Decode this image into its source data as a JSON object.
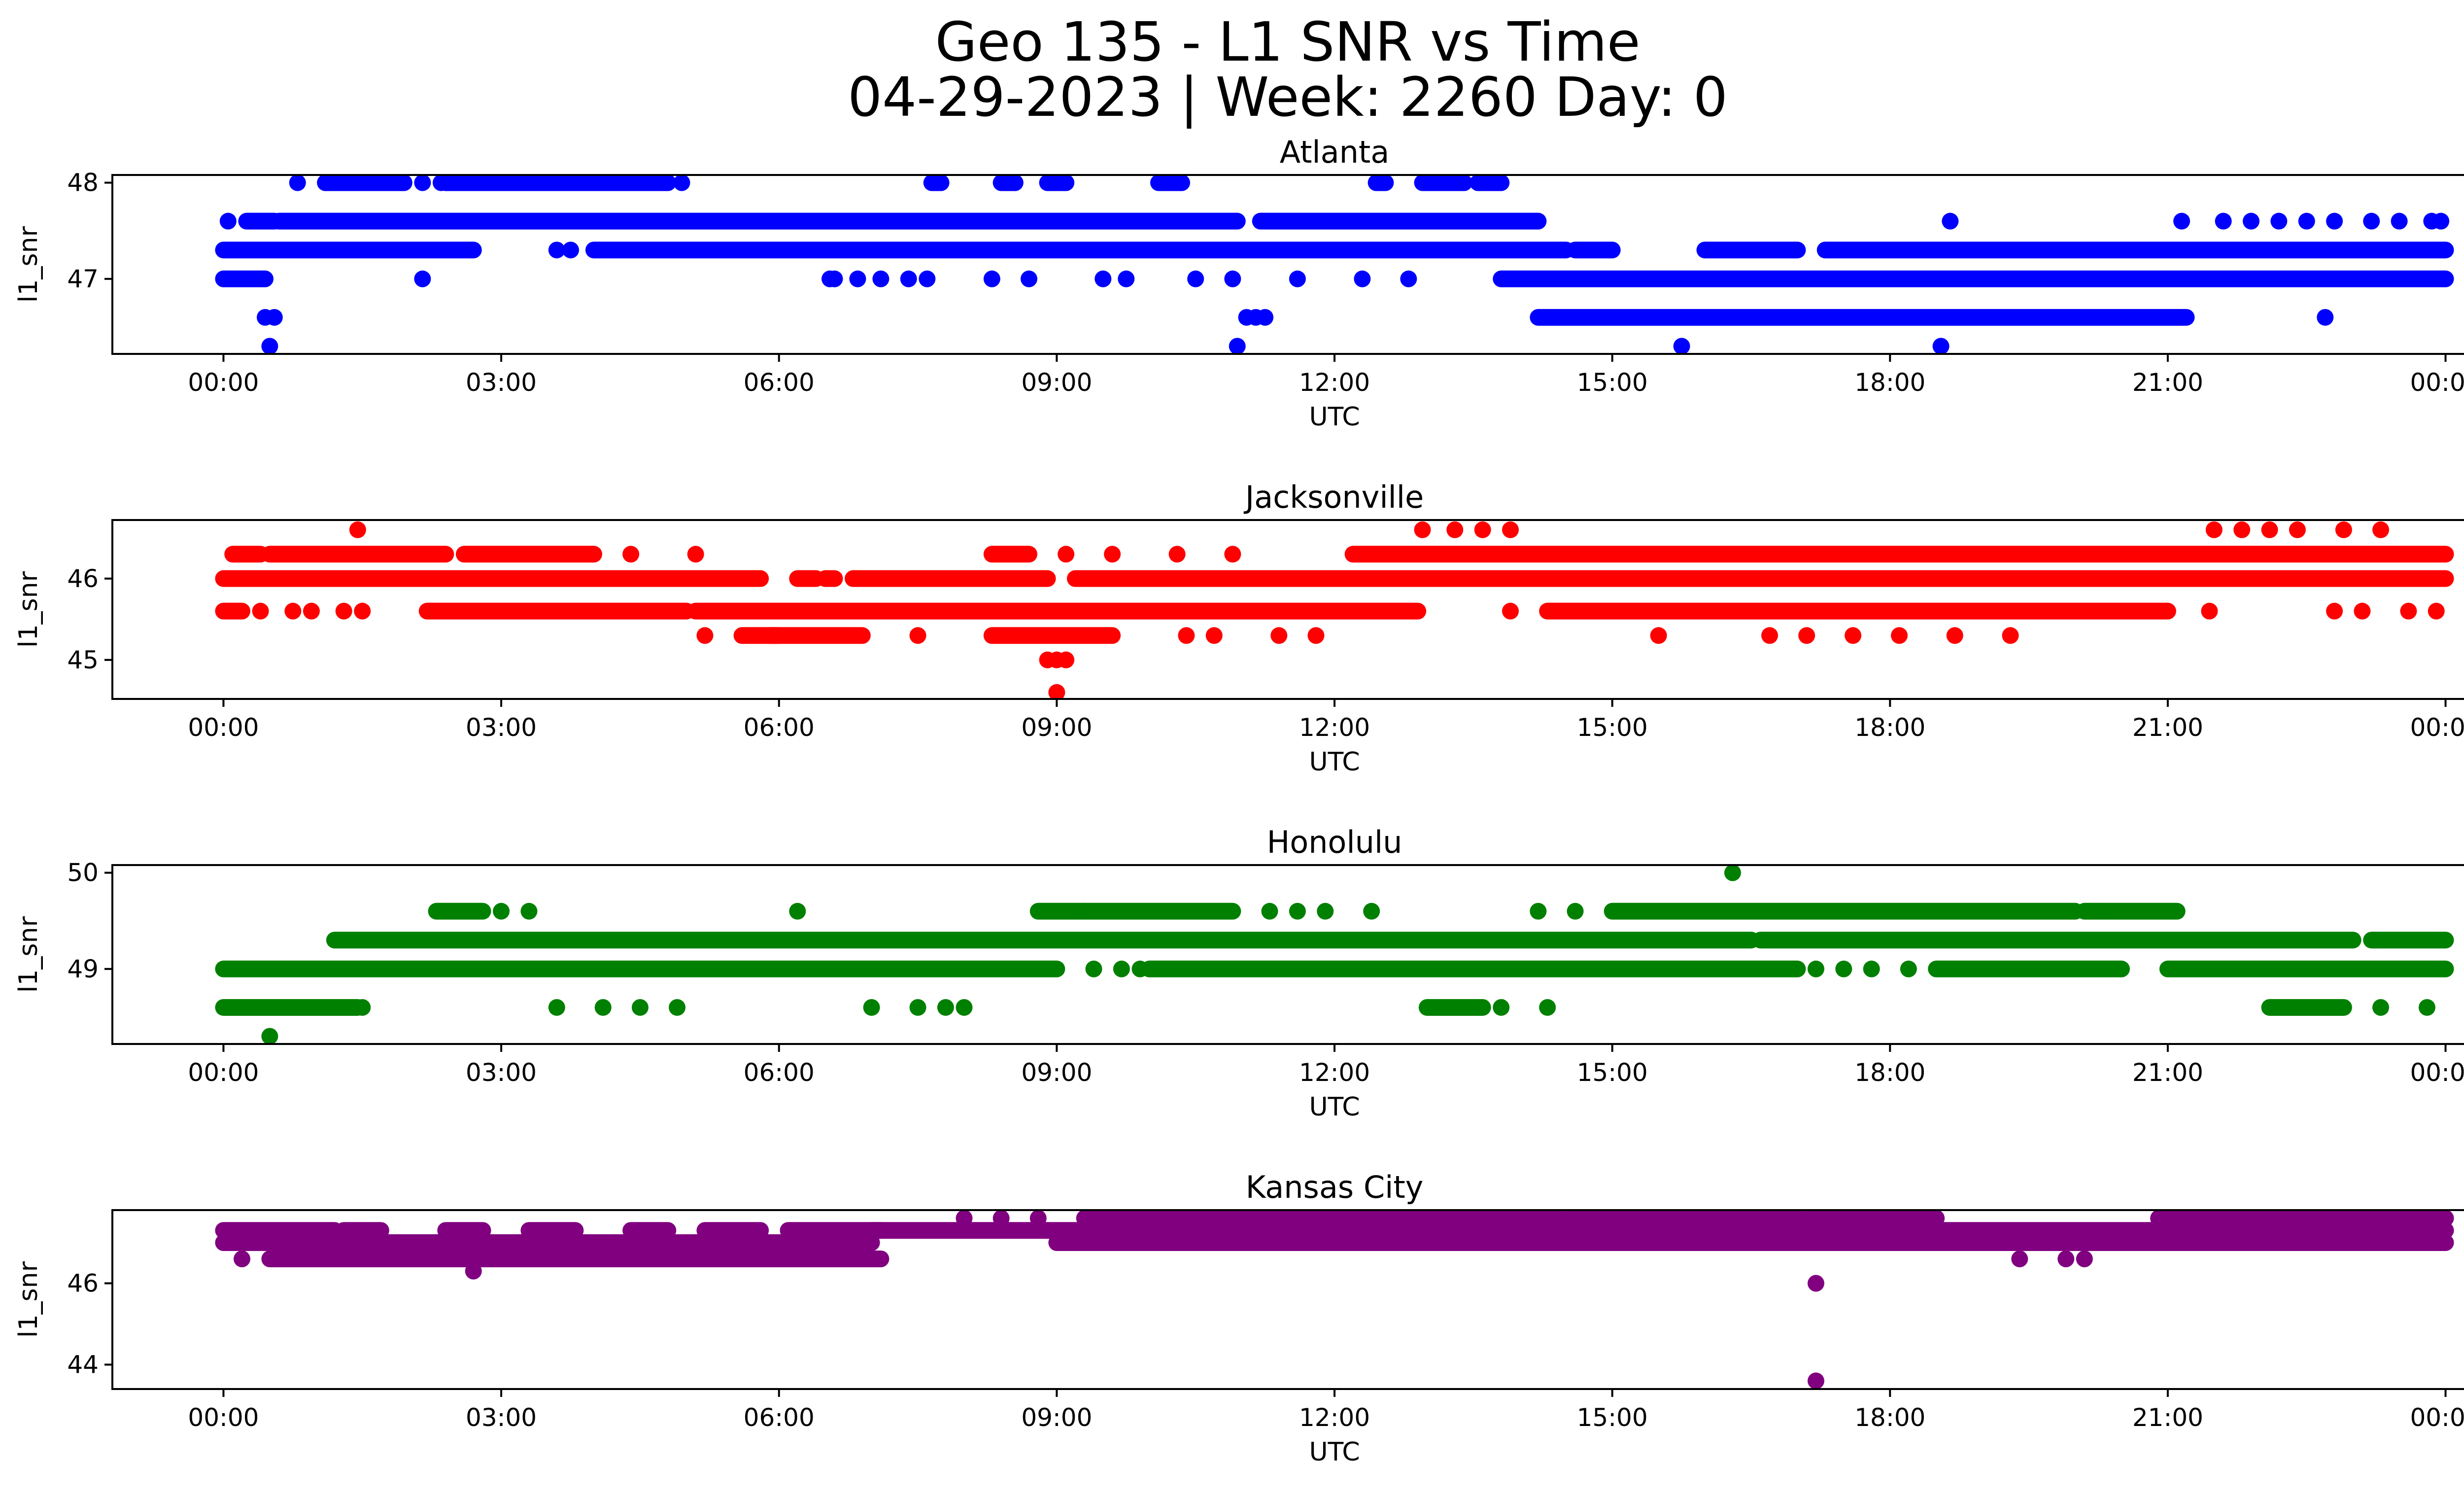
{
  "figure": {
    "title_line1": "Geo 135 - L1 SNR vs Time",
    "title_line2": "04-29-2023 | Week: 2260 Day: 0"
  },
  "chart_data": [
    {
      "type": "scatter",
      "title": "Atlanta",
      "xlabel": "UTC",
      "ylabel": "l1_snr",
      "color": "#0000ff",
      "xlim_hours": [
        -1.2,
        25.2
      ],
      "ylim": [
        46.22,
        48.08
      ],
      "xticks": [
        "00:00",
        "03:00",
        "06:00",
        "09:00",
        "12:00",
        "15:00",
        "18:00",
        "21:00",
        "00:00"
      ],
      "xtick_hours": [
        0,
        3,
        6,
        9,
        12,
        15,
        18,
        21,
        24
      ],
      "yticks": [
        47,
        48
      ],
      "dense_segments": [
        {
          "y": 48.0,
          "ranges": [
            [
              1.1,
              1.95
            ],
            [
              2.4,
              4.8
            ],
            [
              7.65,
              7.75
            ],
            [
              8.4,
              8.55
            ],
            [
              8.9,
              9.1
            ],
            [
              10.1,
              10.35
            ],
            [
              12.45,
              12.55
            ],
            [
              12.95,
              13.4
            ],
            [
              13.55,
              13.8
            ]
          ]
        },
        {
          "y": 47.6,
          "ranges": [
            [
              0.25,
              0.55
            ],
            [
              0.6,
              10.95
            ],
            [
              11.2,
              14.2
            ]
          ]
        },
        {
          "y": 47.3,
          "ranges": [
            [
              0,
              2.7
            ],
            [
              4.0,
              14.5
            ],
            [
              14.6,
              15.0
            ],
            [
              16.0,
              17.0
            ],
            [
              17.3,
              24
            ]
          ]
        },
        {
          "y": 47.0,
          "ranges": [
            [
              0,
              0.45
            ],
            [
              13.8,
              24
            ]
          ]
        },
        {
          "y": 46.6,
          "ranges": [
            [
              14.2,
              21.2
            ]
          ]
        }
      ],
      "points": [
        {
          "x": 0.05,
          "y": 47.6
        },
        {
          "x": 0.8,
          "y": 48.0
        },
        {
          "x": 2.15,
          "y": 48.0
        },
        {
          "x": 2.35,
          "y": 48.0
        },
        {
          "x": 4.95,
          "y": 48.0
        },
        {
          "x": 3.6,
          "y": 47.3
        },
        {
          "x": 3.75,
          "y": 47.3
        },
        {
          "x": 6.55,
          "y": 47.0
        },
        {
          "x": 6.6,
          "y": 47.0
        },
        {
          "x": 6.85,
          "y": 47.0
        },
        {
          "x": 7.1,
          "y": 47.0
        },
        {
          "x": 7.4,
          "y": 47.0
        },
        {
          "x": 7.6,
          "y": 47.0
        },
        {
          "x": 8.3,
          "y": 47.0
        },
        {
          "x": 8.7,
          "y": 47.0
        },
        {
          "x": 9.5,
          "y": 47.0
        },
        {
          "x": 9.75,
          "y": 47.0
        },
        {
          "x": 10.5,
          "y": 47.0
        },
        {
          "x": 10.9,
          "y": 47.0
        },
        {
          "x": 11.6,
          "y": 47.0
        },
        {
          "x": 12.3,
          "y": 47.0
        },
        {
          "x": 12.8,
          "y": 47.0
        },
        {
          "x": 2.15,
          "y": 47.0
        },
        {
          "x": 0.45,
          "y": 46.6
        },
        {
          "x": 0.55,
          "y": 46.6
        },
        {
          "x": 11.05,
          "y": 46.6
        },
        {
          "x": 11.15,
          "y": 46.6
        },
        {
          "x": 11.25,
          "y": 46.6
        },
        {
          "x": 0.5,
          "y": 46.3
        },
        {
          "x": 10.95,
          "y": 46.3
        },
        {
          "x": 15.75,
          "y": 46.3
        },
        {
          "x": 18.55,
          "y": 46.3
        },
        {
          "x": 18.65,
          "y": 47.6
        },
        {
          "x": 21.15,
          "y": 47.6
        },
        {
          "x": 21.6,
          "y": 47.6
        },
        {
          "x": 21.9,
          "y": 47.6
        },
        {
          "x": 22.2,
          "y": 47.6
        },
        {
          "x": 22.5,
          "y": 47.6
        },
        {
          "x": 22.8,
          "y": 47.6
        },
        {
          "x": 23.2,
          "y": 47.6
        },
        {
          "x": 23.5,
          "y": 47.6
        },
        {
          "x": 23.85,
          "y": 47.6
        },
        {
          "x": 23.95,
          "y": 47.6
        },
        {
          "x": 22.7,
          "y": 46.6
        }
      ]
    },
    {
      "type": "scatter",
      "title": "Jacksonville",
      "xlabel": "UTC",
      "ylabel": "l1_snr",
      "color": "#ff0000",
      "xlim_hours": [
        -1.2,
        25.2
      ],
      "ylim": [
        44.52,
        46.72
      ],
      "xticks": [
        "00:00",
        "03:00",
        "06:00",
        "09:00",
        "12:00",
        "15:00",
        "18:00",
        "21:00",
        "00:00"
      ],
      "xtick_hours": [
        0,
        3,
        6,
        9,
        12,
        15,
        18,
        21,
        24
      ],
      "yticks": [
        45,
        46
      ],
      "dense_segments": [
        {
          "y": 46.3,
          "ranges": [
            [
              0.1,
              0.4
            ],
            [
              0.5,
              2.4
            ],
            [
              2.6,
              4.0
            ],
            [
              8.3,
              8.7
            ],
            [
              12.2,
              24
            ]
          ]
        },
        {
          "y": 46.0,
          "ranges": [
            [
              0,
              5.8
            ],
            [
              6.2,
              6.4
            ],
            [
              6.5,
              6.6
            ],
            [
              6.8,
              8.9
            ],
            [
              9.2,
              24
            ]
          ]
        },
        {
          "y": 45.6,
          "ranges": [
            [
              0,
              0.2
            ],
            [
              2.2,
              5.0
            ],
            [
              5.1,
              12.9
            ],
            [
              14.3,
              21.0
            ]
          ]
        },
        {
          "y": 45.3,
          "ranges": [
            [
              5.6,
              6.0
            ],
            [
              5.9,
              6.9
            ],
            [
              8.3,
              9.6
            ]
          ]
        }
      ],
      "points": [
        {
          "x": 1.45,
          "y": 46.6
        },
        {
          "x": 12.95,
          "y": 46.6
        },
        {
          "x": 13.3,
          "y": 46.6
        },
        {
          "x": 13.6,
          "y": 46.6
        },
        {
          "x": 13.9,
          "y": 46.6
        },
        {
          "x": 21.5,
          "y": 46.6
        },
        {
          "x": 21.8,
          "y": 46.6
        },
        {
          "x": 22.1,
          "y": 46.6
        },
        {
          "x": 22.4,
          "y": 46.6
        },
        {
          "x": 22.9,
          "y": 46.6
        },
        {
          "x": 23.3,
          "y": 46.6
        },
        {
          "x": 5.1,
          "y": 46.3
        },
        {
          "x": 4.4,
          "y": 46.3
        },
        {
          "x": 9.1,
          "y": 46.3
        },
        {
          "x": 9.6,
          "y": 46.3
        },
        {
          "x": 10.3,
          "y": 46.3
        },
        {
          "x": 10.9,
          "y": 46.3
        },
        {
          "x": 0.4,
          "y": 45.6
        },
        {
          "x": 0.75,
          "y": 45.6
        },
        {
          "x": 0.95,
          "y": 45.6
        },
        {
          "x": 1.3,
          "y": 45.6
        },
        {
          "x": 1.5,
          "y": 45.6
        },
        {
          "x": 13.9,
          "y": 45.6
        },
        {
          "x": 21.45,
          "y": 45.6
        },
        {
          "x": 22.8,
          "y": 45.6
        },
        {
          "x": 23.1,
          "y": 45.6
        },
        {
          "x": 23.6,
          "y": 45.6
        },
        {
          "x": 23.9,
          "y": 45.6
        },
        {
          "x": 5.2,
          "y": 45.3
        },
        {
          "x": 7.5,
          "y": 45.3
        },
        {
          "x": 10.4,
          "y": 45.3
        },
        {
          "x": 10.7,
          "y": 45.3
        },
        {
          "x": 11.4,
          "y": 45.3
        },
        {
          "x": 11.8,
          "y": 45.3
        },
        {
          "x": 15.5,
          "y": 45.3
        },
        {
          "x": 16.7,
          "y": 45.3
        },
        {
          "x": 17.1,
          "y": 45.3
        },
        {
          "x": 17.6,
          "y": 45.3
        },
        {
          "x": 18.1,
          "y": 45.3
        },
        {
          "x": 18.7,
          "y": 45.3
        },
        {
          "x": 19.3,
          "y": 45.3
        },
        {
          "x": 8.9,
          "y": 45.0
        },
        {
          "x": 9.0,
          "y": 45.0
        },
        {
          "x": 9.1,
          "y": 45.0
        },
        {
          "x": 9.0,
          "y": 44.6
        }
      ]
    },
    {
      "type": "scatter",
      "title": "Honolulu",
      "xlabel": "UTC",
      "ylabel": "l1_snr",
      "color": "#008000",
      "xlim_hours": [
        -1.2,
        25.2
      ],
      "ylim": [
        48.22,
        50.08
      ],
      "xticks": [
        "00:00",
        "03:00",
        "06:00",
        "09:00",
        "12:00",
        "15:00",
        "18:00",
        "21:00",
        "00:00"
      ],
      "xtick_hours": [
        0,
        3,
        6,
        9,
        12,
        15,
        18,
        21,
        24
      ],
      "yticks": [
        49,
        50
      ],
      "dense_segments": [
        {
          "y": 49.6,
          "ranges": [
            [
              2.3,
              2.8
            ],
            [
              8.8,
              9.3
            ],
            [
              9.3,
              10.9
            ],
            [
              15.0,
              20.0
            ],
            [
              20.1,
              21.1
            ]
          ]
        },
        {
          "y": 49.3,
          "ranges": [
            [
              1.2,
              16.5
            ],
            [
              16.6,
              23.0
            ],
            [
              23.2,
              24
            ]
          ]
        },
        {
          "y": 49.0,
          "ranges": [
            [
              0,
              9.0
            ],
            [
              10.0,
              17.0
            ],
            [
              18.5,
              20.5
            ],
            [
              21.0,
              24
            ]
          ]
        },
        {
          "y": 48.6,
          "ranges": [
            [
              0,
              1.45
            ],
            [
              13.0,
              13.6
            ],
            [
              22.1,
              22.9
            ]
          ]
        }
      ],
      "points": [
        {
          "x": 3.0,
          "y": 49.6
        },
        {
          "x": 3.3,
          "y": 49.6
        },
        {
          "x": 6.2,
          "y": 49.6
        },
        {
          "x": 11.3,
          "y": 49.6
        },
        {
          "x": 11.6,
          "y": 49.6
        },
        {
          "x": 11.9,
          "y": 49.6
        },
        {
          "x": 12.4,
          "y": 49.6
        },
        {
          "x": 14.2,
          "y": 49.6
        },
        {
          "x": 14.6,
          "y": 49.6
        },
        {
          "x": 20.3,
          "y": 49.6
        },
        {
          "x": 9.4,
          "y": 49.0
        },
        {
          "x": 9.7,
          "y": 49.0
        },
        {
          "x": 9.9,
          "y": 49.0
        },
        {
          "x": 17.2,
          "y": 49.0
        },
        {
          "x": 17.5,
          "y": 49.0
        },
        {
          "x": 17.8,
          "y": 49.0
        },
        {
          "x": 18.2,
          "y": 49.0
        },
        {
          "x": 1.5,
          "y": 48.6
        },
        {
          "x": 3.6,
          "y": 48.6
        },
        {
          "x": 4.1,
          "y": 48.6
        },
        {
          "x": 4.5,
          "y": 48.6
        },
        {
          "x": 4.9,
          "y": 48.6
        },
        {
          "x": 7.0,
          "y": 48.6
        },
        {
          "x": 7.5,
          "y": 48.6
        },
        {
          "x": 7.8,
          "y": 48.6
        },
        {
          "x": 8.0,
          "y": 48.6
        },
        {
          "x": 13.8,
          "y": 48.6
        },
        {
          "x": 14.3,
          "y": 48.6
        },
        {
          "x": 23.3,
          "y": 48.6
        },
        {
          "x": 23.8,
          "y": 48.6
        },
        {
          "x": 16.3,
          "y": 50.0
        },
        {
          "x": 0.5,
          "y": 48.3
        }
      ]
    },
    {
      "type": "scatter",
      "title": "Kansas City",
      "xlabel": "UTC",
      "ylabel": "l1_snr",
      "color": "#800080",
      "xlim_hours": [
        -1.2,
        25.2
      ],
      "ylim": [
        43.4,
        47.8
      ],
      "xticks": [
        "00:00",
        "03:00",
        "06:00",
        "09:00",
        "12:00",
        "15:00",
        "18:00",
        "21:00",
        "00:00"
      ],
      "xtick_hours": [
        0,
        3,
        6,
        9,
        12,
        15,
        18,
        21,
        24
      ],
      "yticks": [
        44,
        46
      ],
      "dense_segments": [
        {
          "y": 47.6,
          "ranges": [
            [
              9.3,
              14.4
            ],
            [
              14.5,
              17.0
            ],
            [
              17.1,
              18.5
            ],
            [
              20.9,
              24
            ]
          ]
        },
        {
          "y": 47.3,
          "ranges": [
            [
              0,
              1.2
            ],
            [
              1.3,
              1.7
            ],
            [
              2.4,
              2.8
            ],
            [
              3.3,
              3.8
            ],
            [
              4.4,
              4.8
            ],
            [
              5.2,
              5.8
            ],
            [
              6.1,
              7.1
            ],
            [
              7.0,
              24
            ]
          ]
        },
        {
          "y": 47.0,
          "ranges": [
            [
              0,
              7.0
            ],
            [
              9.0,
              24
            ]
          ]
        },
        {
          "y": 46.6,
          "ranges": [
            [
              0.5,
              7.1
            ]
          ]
        }
      ],
      "points": [
        {
          "x": 8.0,
          "y": 47.6
        },
        {
          "x": 8.4,
          "y": 47.6
        },
        {
          "x": 8.8,
          "y": 47.6
        },
        {
          "x": 0.2,
          "y": 46.6
        },
        {
          "x": 19.4,
          "y": 46.6
        },
        {
          "x": 19.9,
          "y": 46.6
        },
        {
          "x": 20.1,
          "y": 46.6
        },
        {
          "x": 2.7,
          "y": 46.3
        },
        {
          "x": 17.2,
          "y": 46.0
        },
        {
          "x": 17.2,
          "y": 43.6
        }
      ]
    }
  ]
}
